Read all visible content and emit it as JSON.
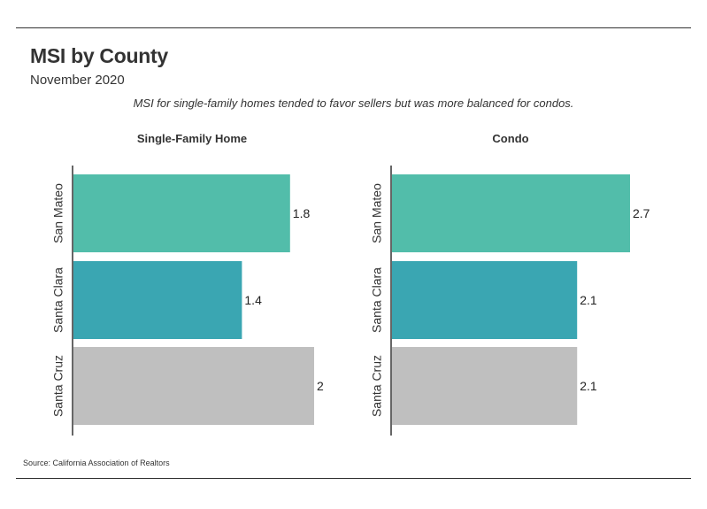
{
  "header": {
    "title": "MSI by County",
    "subtitle": "November 2020",
    "note": "MSI for single-family homes tended to favor sellers but was more balanced for condos."
  },
  "footer": {
    "source": "Source:  California Association of Realtors"
  },
  "colors": {
    "San Mateo": "#52bdaa",
    "Santa Clara": "#3aa6b2",
    "Santa Cruz": "#bfbfbf",
    "axis": "#333333"
  },
  "chart_data": [
    {
      "type": "bar",
      "orientation": "horizontal",
      "title": "Single-Family Home",
      "categories": [
        "San Mateo",
        "Santa Clara",
        "Santa Cruz"
      ],
      "values": [
        1.8,
        1.4,
        2
      ],
      "xlim": [
        0,
        2
      ],
      "grid": false
    },
    {
      "type": "bar",
      "orientation": "horizontal",
      "title": "Condo",
      "categories": [
        "San Mateo",
        "Santa Clara",
        "Santa Cruz"
      ],
      "values": [
        2.7,
        2.1,
        2.1
      ],
      "xlim": [
        0,
        2.7
      ],
      "grid": false
    }
  ]
}
